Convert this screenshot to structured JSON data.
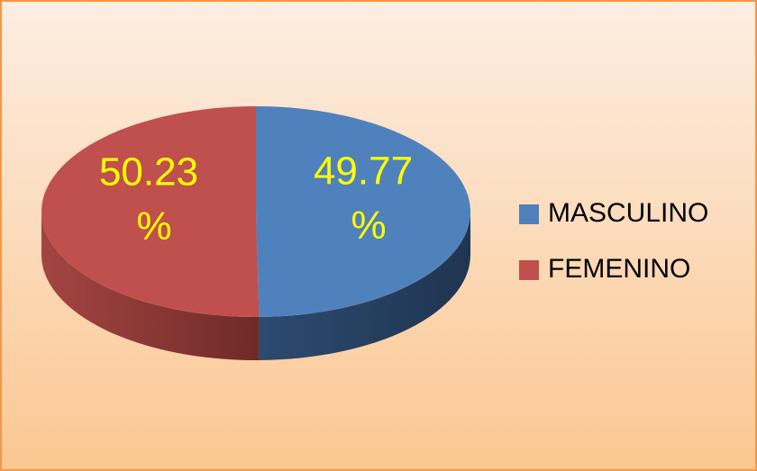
{
  "chart_data": {
    "type": "pie",
    "categories": [
      "MASCULINO",
      "FEMENINO"
    ],
    "values": [
      49.77,
      50.23
    ],
    "value_labels": [
      "49.77 %",
      "50.23 %"
    ],
    "colors": [
      "#4f81bd",
      "#c0504d"
    ],
    "label_color": "#ffff00",
    "legend": "right"
  }
}
